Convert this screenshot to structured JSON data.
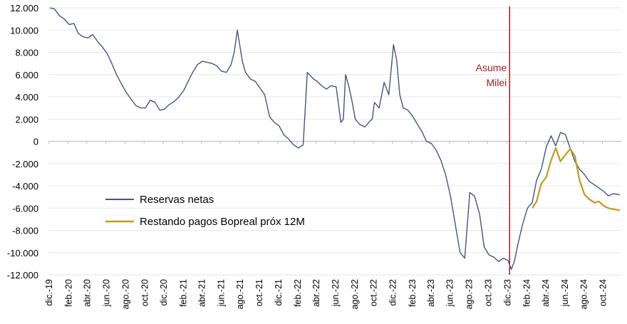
{
  "chart_data": {
    "type": "line",
    "title": "",
    "xlabel": "",
    "ylabel": "",
    "ylim": [
      -12000,
      12000
    ],
    "yticks": [
      12000,
      10000,
      8000,
      6000,
      4000,
      2000,
      0,
      -2000,
      -4000,
      -6000,
      -8000,
      -10000,
      -12000
    ],
    "ytick_labels": [
      "12.000",
      "10.000",
      "8.000",
      "6.000",
      "4.000",
      "2.000",
      "0",
      "-2.000",
      "-4.000",
      "-6.000",
      "-8.000",
      "-10.000",
      "-12.000"
    ],
    "x_range": [
      "2019-12-01",
      "2024-11-30"
    ],
    "x_tick_labels": [
      {
        "date": "2019-12-01",
        "label": "dic.-19"
      },
      {
        "date": "2020-02-01",
        "label": "feb.-20"
      },
      {
        "date": "2020-04-01",
        "label": "abr.-20"
      },
      {
        "date": "2020-06-01",
        "label": "jun.-20"
      },
      {
        "date": "2020-08-01",
        "label": "ago.-20"
      },
      {
        "date": "2020-10-01",
        "label": "oct.-20"
      },
      {
        "date": "2020-12-01",
        "label": "dic.-20"
      },
      {
        "date": "2021-02-01",
        "label": "feb.-21"
      },
      {
        "date": "2021-04-01",
        "label": "abr.-21"
      },
      {
        "date": "2021-06-01",
        "label": "jun.-21"
      },
      {
        "date": "2021-08-01",
        "label": "ago.-21"
      },
      {
        "date": "2021-10-01",
        "label": "oct.-21"
      },
      {
        "date": "2021-12-01",
        "label": "dic.-21"
      },
      {
        "date": "2022-02-01",
        "label": "feb.-22"
      },
      {
        "date": "2022-04-01",
        "label": "abr.-22"
      },
      {
        "date": "2022-06-01",
        "label": "jun.-22"
      },
      {
        "date": "2022-08-01",
        "label": "ago.-22"
      },
      {
        "date": "2022-10-01",
        "label": "oct.-22"
      },
      {
        "date": "2022-12-01",
        "label": "dic.-22"
      },
      {
        "date": "2023-02-01",
        "label": "feb.-23"
      },
      {
        "date": "2023-04-01",
        "label": "abr.-23"
      },
      {
        "date": "2023-06-01",
        "label": "jun.-23"
      },
      {
        "date": "2023-08-01",
        "label": "ago.-23"
      },
      {
        "date": "2023-10-01",
        "label": "oct.-23"
      },
      {
        "date": "2023-12-01",
        "label": "dic.-23"
      },
      {
        "date": "2024-02-01",
        "label": "feb.-24"
      },
      {
        "date": "2024-04-01",
        "label": "abr.-24"
      },
      {
        "date": "2024-06-01",
        "label": "jun.-24"
      },
      {
        "date": "2024-08-01",
        "label": "ago.-24"
      },
      {
        "date": "2024-10-01",
        "label": "oct.-24"
      }
    ],
    "grid": {
      "horizontal": true,
      "vertical": false
    },
    "legend_position": "bottom-left",
    "annotation": {
      "date": "2023-12-10",
      "line1": "Asume",
      "line2": "Milei",
      "color": "#a01e22"
    },
    "series": [
      {
        "name": "Reservas netas",
        "color": "#44557f",
        "x": [
          "2019-12-05",
          "2019-12-20",
          "2020-01-05",
          "2020-01-20",
          "2020-02-05",
          "2020-02-20",
          "2020-03-05",
          "2020-03-20",
          "2020-04-05",
          "2020-04-20",
          "2020-05-05",
          "2020-05-20",
          "2020-06-05",
          "2020-06-20",
          "2020-07-05",
          "2020-07-20",
          "2020-08-05",
          "2020-08-20",
          "2020-09-05",
          "2020-09-20",
          "2020-10-05",
          "2020-10-20",
          "2020-11-05",
          "2020-11-20",
          "2020-12-05",
          "2020-12-20",
          "2021-01-05",
          "2021-01-20",
          "2021-02-05",
          "2021-02-20",
          "2021-03-05",
          "2021-03-20",
          "2021-04-05",
          "2021-04-20",
          "2021-05-05",
          "2021-05-20",
          "2021-06-05",
          "2021-06-20",
          "2021-07-05",
          "2021-07-15",
          "2021-07-25",
          "2021-08-10",
          "2021-08-20",
          "2021-09-05",
          "2021-09-20",
          "2021-10-05",
          "2021-10-20",
          "2021-11-05",
          "2021-11-20",
          "2021-12-05",
          "2021-12-20",
          "2022-01-05",
          "2022-01-20",
          "2022-02-05",
          "2022-02-20",
          "2022-03-05",
          "2022-03-15",
          "2022-03-25",
          "2022-04-05",
          "2022-04-20",
          "2022-05-05",
          "2022-05-20",
          "2022-06-05",
          "2022-06-20",
          "2022-06-28",
          "2022-07-05",
          "2022-07-15",
          "2022-07-25",
          "2022-08-05",
          "2022-08-20",
          "2022-09-05",
          "2022-09-20",
          "2022-09-28",
          "2022-10-05",
          "2022-10-20",
          "2022-11-05",
          "2022-11-20",
          "2022-12-05",
          "2022-12-15",
          "2022-12-25",
          "2023-01-05",
          "2023-01-20",
          "2023-02-05",
          "2023-02-20",
          "2023-03-05",
          "2023-03-20",
          "2023-04-05",
          "2023-04-20",
          "2023-05-05",
          "2023-05-20",
          "2023-06-05",
          "2023-06-20",
          "2023-07-05",
          "2023-07-20",
          "2023-08-05",
          "2023-08-20",
          "2023-09-05",
          "2023-09-20",
          "2023-10-05",
          "2023-10-20",
          "2023-11-05",
          "2023-11-20",
          "2023-12-05",
          "2023-12-15",
          "2023-12-25",
          "2024-01-05",
          "2024-01-20",
          "2024-02-05",
          "2024-02-20",
          "2024-03-05",
          "2024-03-20",
          "2024-04-05",
          "2024-04-20",
          "2024-05-05",
          "2024-05-20",
          "2024-06-05",
          "2024-06-20",
          "2024-07-05",
          "2024-07-20",
          "2024-08-05",
          "2024-08-20",
          "2024-09-05",
          "2024-09-20",
          "2024-10-05",
          "2024-10-20",
          "2024-11-05",
          "2024-11-25"
        ],
        "y": [
          12000,
          11900,
          11300,
          11000,
          10500,
          10600,
          9700,
          9400,
          9300,
          9600,
          9000,
          8500,
          7900,
          7000,
          6000,
          5200,
          4400,
          3800,
          3200,
          3000,
          3000,
          3700,
          3500,
          2800,
          2900,
          3300,
          3600,
          4000,
          4600,
          5500,
          6200,
          6900,
          7200,
          7100,
          7000,
          6800,
          6300,
          6200,
          6900,
          8000,
          10000,
          7200,
          6200,
          5600,
          5400,
          4800,
          4200,
          2200,
          1700,
          1400,
          600,
          200,
          -300,
          -600,
          -300,
          6200,
          5900,
          5600,
          5400,
          5000,
          4700,
          5000,
          4900,
          1700,
          2000,
          6000,
          5000,
          3700,
          2000,
          1500,
          1300,
          1800,
          2000,
          3500,
          3000,
          5300,
          4200,
          8700,
          7300,
          4200,
          3000,
          2800,
          2200,
          1500,
          900,
          0,
          -200,
          -800,
          -1700,
          -3000,
          -5000,
          -7500,
          -10000,
          -10500,
          -4600,
          -4900,
          -6500,
          -9500,
          -10200,
          -10400,
          -10800,
          -10500,
          -10700,
          -11500,
          -10800,
          -9300,
          -7500,
          -6000,
          -5500,
          -3500,
          -2500,
          -500,
          500,
          -400,
          800,
          600,
          -600,
          -1800,
          -2500,
          -3000,
          -3600,
          -3900,
          -4200,
          -4500,
          -4900,
          -4700,
          -4800
        ]
      },
      {
        "name": "Restando pagos Bopreal próx 12M",
        "color": "#c19a1a",
        "x": [
          "2024-02-20",
          "2024-03-05",
          "2024-03-20",
          "2024-04-05",
          "2024-04-20",
          "2024-05-05",
          "2024-05-20",
          "2024-06-05",
          "2024-06-20",
          "2024-07-05",
          "2024-07-20",
          "2024-08-05",
          "2024-08-20",
          "2024-09-05",
          "2024-09-20",
          "2024-10-05",
          "2024-10-20",
          "2024-11-05",
          "2024-11-25"
        ],
        "y": [
          -6000,
          -5400,
          -3800,
          -3200,
          -1700,
          -600,
          -1800,
          -1200,
          -700,
          -1300,
          -3500,
          -4800,
          -5200,
          -5500,
          -5400,
          -5800,
          -6000,
          -6100,
          -6200
        ]
      }
    ]
  }
}
